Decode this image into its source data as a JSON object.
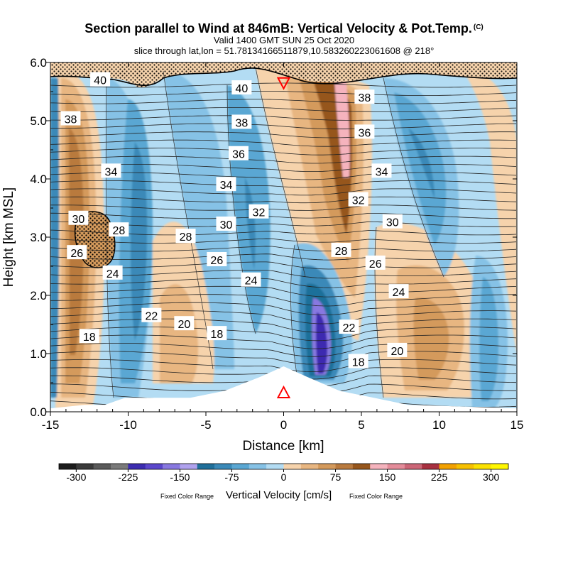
{
  "chart_data": {
    "type": "heatmap",
    "title": "Section parallel to Wind at 846mB: Vertical Velocity & Pot.Temp.",
    "copyright": "(C)",
    "subtitle1": "Valid 1400 GMT SUN 25 Oct 2020",
    "subtitle2": "slice through lat,lon = 51.78134166511879,10.583260223061608 @ 218°",
    "xlabel": "Distance [km]",
    "ylabel": "Height [km MSL]",
    "xlim": [
      -15,
      15
    ],
    "ylim": [
      0,
      6
    ],
    "x_ticks": [
      -15,
      -10,
      -5,
      0,
      5,
      10,
      15
    ],
    "x_tick_labels": [
      "-15",
      "-10",
      "-5",
      "0",
      "5",
      "10",
      "15"
    ],
    "y_ticks": [
      0,
      1,
      2,
      3,
      4,
      5,
      6
    ],
    "y_tick_labels": [
      "0.0",
      "1.0",
      "2.0",
      "3.0",
      "4.0",
      "5.0",
      "6.0"
    ],
    "colorbar": {
      "label": "Vertical Velocity [cm/s]",
      "note_left": "Fixed Color Range",
      "note_right": "Fixed Color Range",
      "min": -325,
      "max": 325,
      "step": 25,
      "tick_values": [
        -300,
        -225,
        -150,
        -75,
        0,
        75,
        150,
        225,
        300
      ],
      "tick_labels": [
        "-300",
        "-225",
        "-150",
        "-75",
        "0",
        "75",
        "150",
        "225",
        "300"
      ],
      "colors": [
        "#1c1c1c",
        "#3a3a3a",
        "#5a5a5a",
        "#7a7a7a",
        "#3c2cb0",
        "#5b47cc",
        "#8878e0",
        "#b0a2ee",
        "#1f6f9a",
        "#3a89b8",
        "#5aa7d3",
        "#86c2e6",
        "#b3dcf3",
        "#f6d3ac",
        "#e8b681",
        "#d49a5c",
        "#b97a3e",
        "#96561c",
        "#f5b3bd",
        "#e48c9a",
        "#cc6677",
        "#a83040",
        "#f2a100",
        "#f7c000",
        "#fbe100",
        "#fff700"
      ]
    },
    "theta_labels": [
      {
        "x": -11.8,
        "y": 5.7,
        "text": "40"
      },
      {
        "x": -2.7,
        "y": 5.56,
        "text": "40"
      },
      {
        "x": 5.2,
        "y": 5.4,
        "text": "38"
      },
      {
        "x": -13.7,
        "y": 5.03,
        "text": "38"
      },
      {
        "x": -2.7,
        "y": 4.97,
        "text": "38"
      },
      {
        "x": 5.2,
        "y": 4.8,
        "text": "36"
      },
      {
        "x": -2.9,
        "y": 4.43,
        "text": "36"
      },
      {
        "x": -11.1,
        "y": 4.13,
        "text": "34"
      },
      {
        "x": 6.3,
        "y": 4.13,
        "text": "34"
      },
      {
        "x": -3.7,
        "y": 3.9,
        "text": "34"
      },
      {
        "x": 4.8,
        "y": 3.64,
        "text": "32"
      },
      {
        "x": -1.6,
        "y": 3.43,
        "text": "32"
      },
      {
        "x": -13.2,
        "y": 3.32,
        "text": "30"
      },
      {
        "x": 7.0,
        "y": 3.26,
        "text": "30"
      },
      {
        "x": -3.7,
        "y": 3.22,
        "text": "30"
      },
      {
        "x": -10.6,
        "y": 3.12,
        "text": "28"
      },
      {
        "x": -6.3,
        "y": 3.01,
        "text": "28"
      },
      {
        "x": -13.3,
        "y": 2.73,
        "text": "26"
      },
      {
        "x": 3.7,
        "y": 2.77,
        "text": "28"
      },
      {
        "x": -4.3,
        "y": 2.61,
        "text": "26"
      },
      {
        "x": 5.9,
        "y": 2.55,
        "text": "26"
      },
      {
        "x": -11.0,
        "y": 2.38,
        "text": "24"
      },
      {
        "x": -2.1,
        "y": 2.26,
        "text": "24"
      },
      {
        "x": 7.4,
        "y": 2.06,
        "text": "24"
      },
      {
        "x": -8.5,
        "y": 1.65,
        "text": "22"
      },
      {
        "x": -6.4,
        "y": 1.51,
        "text": "20"
      },
      {
        "x": 4.2,
        "y": 1.45,
        "text": "22"
      },
      {
        "x": -4.3,
        "y": 1.34,
        "text": "18"
      },
      {
        "x": -12.5,
        "y": 1.29,
        "text": "18"
      },
      {
        "x": 7.3,
        "y": 1.05,
        "text": "20"
      },
      {
        "x": 4.8,
        "y": 0.86,
        "text": "18"
      }
    ],
    "markers": [
      {
        "type": "triangle-down",
        "x": 0,
        "y": 5.65,
        "color": "#ff0000"
      },
      {
        "type": "triangle-up",
        "x": 0,
        "y": 0.33,
        "color": "#ff0000"
      }
    ],
    "terrain_height_km": [
      {
        "x": -15,
        "y": 0.06
      },
      {
        "x": -12.8,
        "y": 0.12
      },
      {
        "x": -11.5,
        "y": 0.12
      },
      {
        "x": -10.2,
        "y": 0.24
      },
      {
        "x": -6.0,
        "y": 0.24
      },
      {
        "x": -3.8,
        "y": 0.36
      },
      {
        "x": -1.5,
        "y": 0.6
      },
      {
        "x": 0,
        "y": 0.78
      },
      {
        "x": 1.5,
        "y": 0.6
      },
      {
        "x": 3.6,
        "y": 0.36
      },
      {
        "x": 5.8,
        "y": 0.24
      },
      {
        "x": 8.0,
        "y": 0.12
      },
      {
        "x": 15,
        "y": 0.06
      }
    ]
  }
}
